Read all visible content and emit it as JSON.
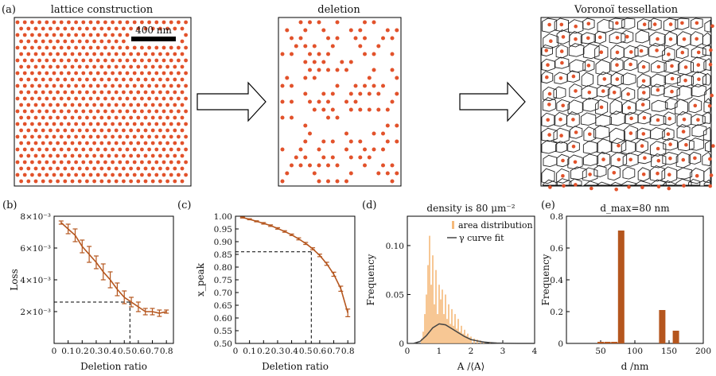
{
  "colors": {
    "dot": "#e2522b",
    "curve": "#b5561e",
    "hist": "#f5b97a",
    "fitline": "#444444",
    "axis": "#000000"
  },
  "labels": {
    "a": "(a)",
    "b": "(b)",
    "c": "(c)",
    "d": "(d)",
    "e": "(e)"
  },
  "panel_a": {
    "titles": [
      "lattice construction",
      "deletion",
      "Voronoï tessellation"
    ],
    "scalebar": "400 nm"
  },
  "chart_data": [
    {
      "id": "b",
      "type": "line",
      "xlabel": "Deletion ratio",
      "ylabel": "Loss",
      "xlim": [
        0,
        0.85
      ],
      "ylim": [
        0,
        0.008
      ],
      "xticks": [
        0,
        0.1,
        0.2,
        0.3,
        0.4,
        0.5,
        0.6,
        0.7,
        0.8
      ],
      "xticklabels": [
        "0",
        "0.1",
        "0.2",
        "0.3",
        "0.4",
        "0.5",
        "0.6",
        "0.7",
        "0.8"
      ],
      "yticks": [
        0.002,
        0.004,
        0.006,
        0.008
      ],
      "yticklabels": [
        "2×10⁻³",
        "4×10⁻³",
        "6×10⁻³",
        "8×10⁻³"
      ],
      "x": [
        0.05,
        0.1,
        0.15,
        0.2,
        0.25,
        0.3,
        0.35,
        0.4,
        0.45,
        0.5,
        0.55,
        0.6,
        0.65,
        0.7,
        0.75,
        0.8
      ],
      "y": [
        0.0076,
        0.0072,
        0.0068,
        0.0061,
        0.0056,
        0.0051,
        0.0045,
        0.004,
        0.0034,
        0.0029,
        0.0026,
        0.0023,
        0.002,
        0.002,
        0.0019,
        0.002
      ],
      "err": [
        0.0001,
        0.0003,
        0.0004,
        0.0004,
        0.0005,
        0.0004,
        0.0005,
        0.0005,
        0.0004,
        0.0004,
        0.0003,
        0.0003,
        0.0002,
        0.0002,
        0.0002,
        0.0001
      ],
      "guide": {
        "x": 0.54,
        "y": 0.0026
      }
    },
    {
      "id": "c",
      "type": "line",
      "xlabel": "Deletion ratio",
      "ylabel": "x_peak",
      "xlim": [
        0,
        0.85
      ],
      "ylim": [
        0.5,
        1.0
      ],
      "xticks": [
        0,
        0.1,
        0.2,
        0.3,
        0.4,
        0.5,
        0.6,
        0.7,
        0.8
      ],
      "xticklabels": [
        "0",
        "0.1",
        "0.2",
        "0.3",
        "0.4",
        "0.5",
        "0.6",
        "0.7",
        "0.8"
      ],
      "yticks": [
        0.5,
        0.55,
        0.6,
        0.65,
        0.7,
        0.75,
        0.8,
        0.85,
        0.9,
        0.95,
        1.0
      ],
      "yticklabels": [
        "0.50",
        "0.55",
        "0.60",
        "0.65",
        "0.70",
        "0.75",
        "0.80",
        "0.85",
        "0.90",
        "0.95",
        "1.00"
      ],
      "x": [
        0.05,
        0.1,
        0.15,
        0.2,
        0.25,
        0.3,
        0.35,
        0.4,
        0.45,
        0.5,
        0.55,
        0.6,
        0.65,
        0.7,
        0.75,
        0.8
      ],
      "y": [
        0.995,
        0.988,
        0.98,
        0.972,
        0.963,
        0.952,
        0.94,
        0.927,
        0.911,
        0.893,
        0.872,
        0.846,
        0.813,
        0.772,
        0.715,
        0.62
      ],
      "err": [
        0.002,
        0.002,
        0.002,
        0.003,
        0.003,
        0.003,
        0.003,
        0.003,
        0.004,
        0.004,
        0.004,
        0.005,
        0.006,
        0.008,
        0.01,
        0.015
      ],
      "guide": {
        "x": 0.54,
        "y": 0.86
      }
    },
    {
      "id": "d",
      "type": "bar",
      "title": "density is 80 μm⁻²",
      "xlabel": "A /⟨A⟩",
      "ylabel": "Frequency",
      "xlim": [
        0,
        4
      ],
      "ylim": [
        0,
        0.13
      ],
      "xticks": [
        0,
        1,
        2,
        3,
        4
      ],
      "xticklabels": [
        "0",
        "1",
        "2",
        "3",
        "4"
      ],
      "yticks": [
        0,
        0.05,
        0.1
      ],
      "yticklabels": [
        "0",
        "0.05",
        "0.10"
      ],
      "legend": [
        "area distribution",
        "γ curve fit"
      ],
      "legend_position": "top-right",
      "hist_x": [
        0.45,
        0.5,
        0.55,
        0.6,
        0.65,
        0.7,
        0.75,
        0.8,
        0.85,
        0.9,
        0.95,
        1.0,
        1.05,
        1.1,
        1.15,
        1.2,
        1.25,
        1.3,
        1.35,
        1.4,
        1.45,
        1.5,
        1.55,
        1.6,
        1.65,
        1.7,
        1.75,
        1.8,
        1.85,
        1.9,
        1.95,
        2.0,
        2.1,
        2.2,
        2.3,
        2.4,
        2.6,
        2.8
      ],
      "hist_y": [
        0.005,
        0.012,
        0.03,
        0.05,
        0.08,
        0.11,
        0.06,
        0.09,
        0.04,
        0.075,
        0.03,
        0.06,
        0.045,
        0.055,
        0.03,
        0.05,
        0.025,
        0.04,
        0.02,
        0.035,
        0.018,
        0.03,
        0.015,
        0.025,
        0.012,
        0.018,
        0.01,
        0.014,
        0.008,
        0.01,
        0.006,
        0.007,
        0.005,
        0.004,
        0.003,
        0.002,
        0.0015,
        0.001
      ],
      "fit_x": [
        0.2,
        0.4,
        0.6,
        0.8,
        1.0,
        1.2,
        1.4,
        1.6,
        1.8,
        2.0,
        2.2,
        2.4,
        2.6,
        2.8,
        3.0,
        3.5,
        4.0
      ],
      "fit_y": [
        0.0,
        0.002,
        0.008,
        0.016,
        0.02,
        0.019,
        0.015,
        0.011,
        0.007,
        0.004,
        0.0025,
        0.0015,
        0.0008,
        0.0004,
        0.0002,
        0.0,
        0.0
      ]
    },
    {
      "id": "e",
      "type": "bar",
      "title": "d_max=80 nm",
      "xlabel": "d /nm",
      "ylabel": "Frequency",
      "xlim": [
        0,
        200
      ],
      "ylim": [
        0,
        0.8
      ],
      "xticks": [
        50,
        100,
        150,
        200
      ],
      "xticklabels": [
        "50",
        "100",
        "150",
        "200"
      ],
      "yticks": [
        0,
        0.2,
        0.4,
        0.6,
        0.8
      ],
      "yticklabels": [
        "0",
        "0.2",
        "0.4",
        "0.6",
        "0.8"
      ],
      "x": [
        50,
        60,
        70,
        80,
        140,
        160
      ],
      "y": [
        0.01,
        0.01,
        0.01,
        0.71,
        0.21,
        0.08
      ]
    }
  ]
}
